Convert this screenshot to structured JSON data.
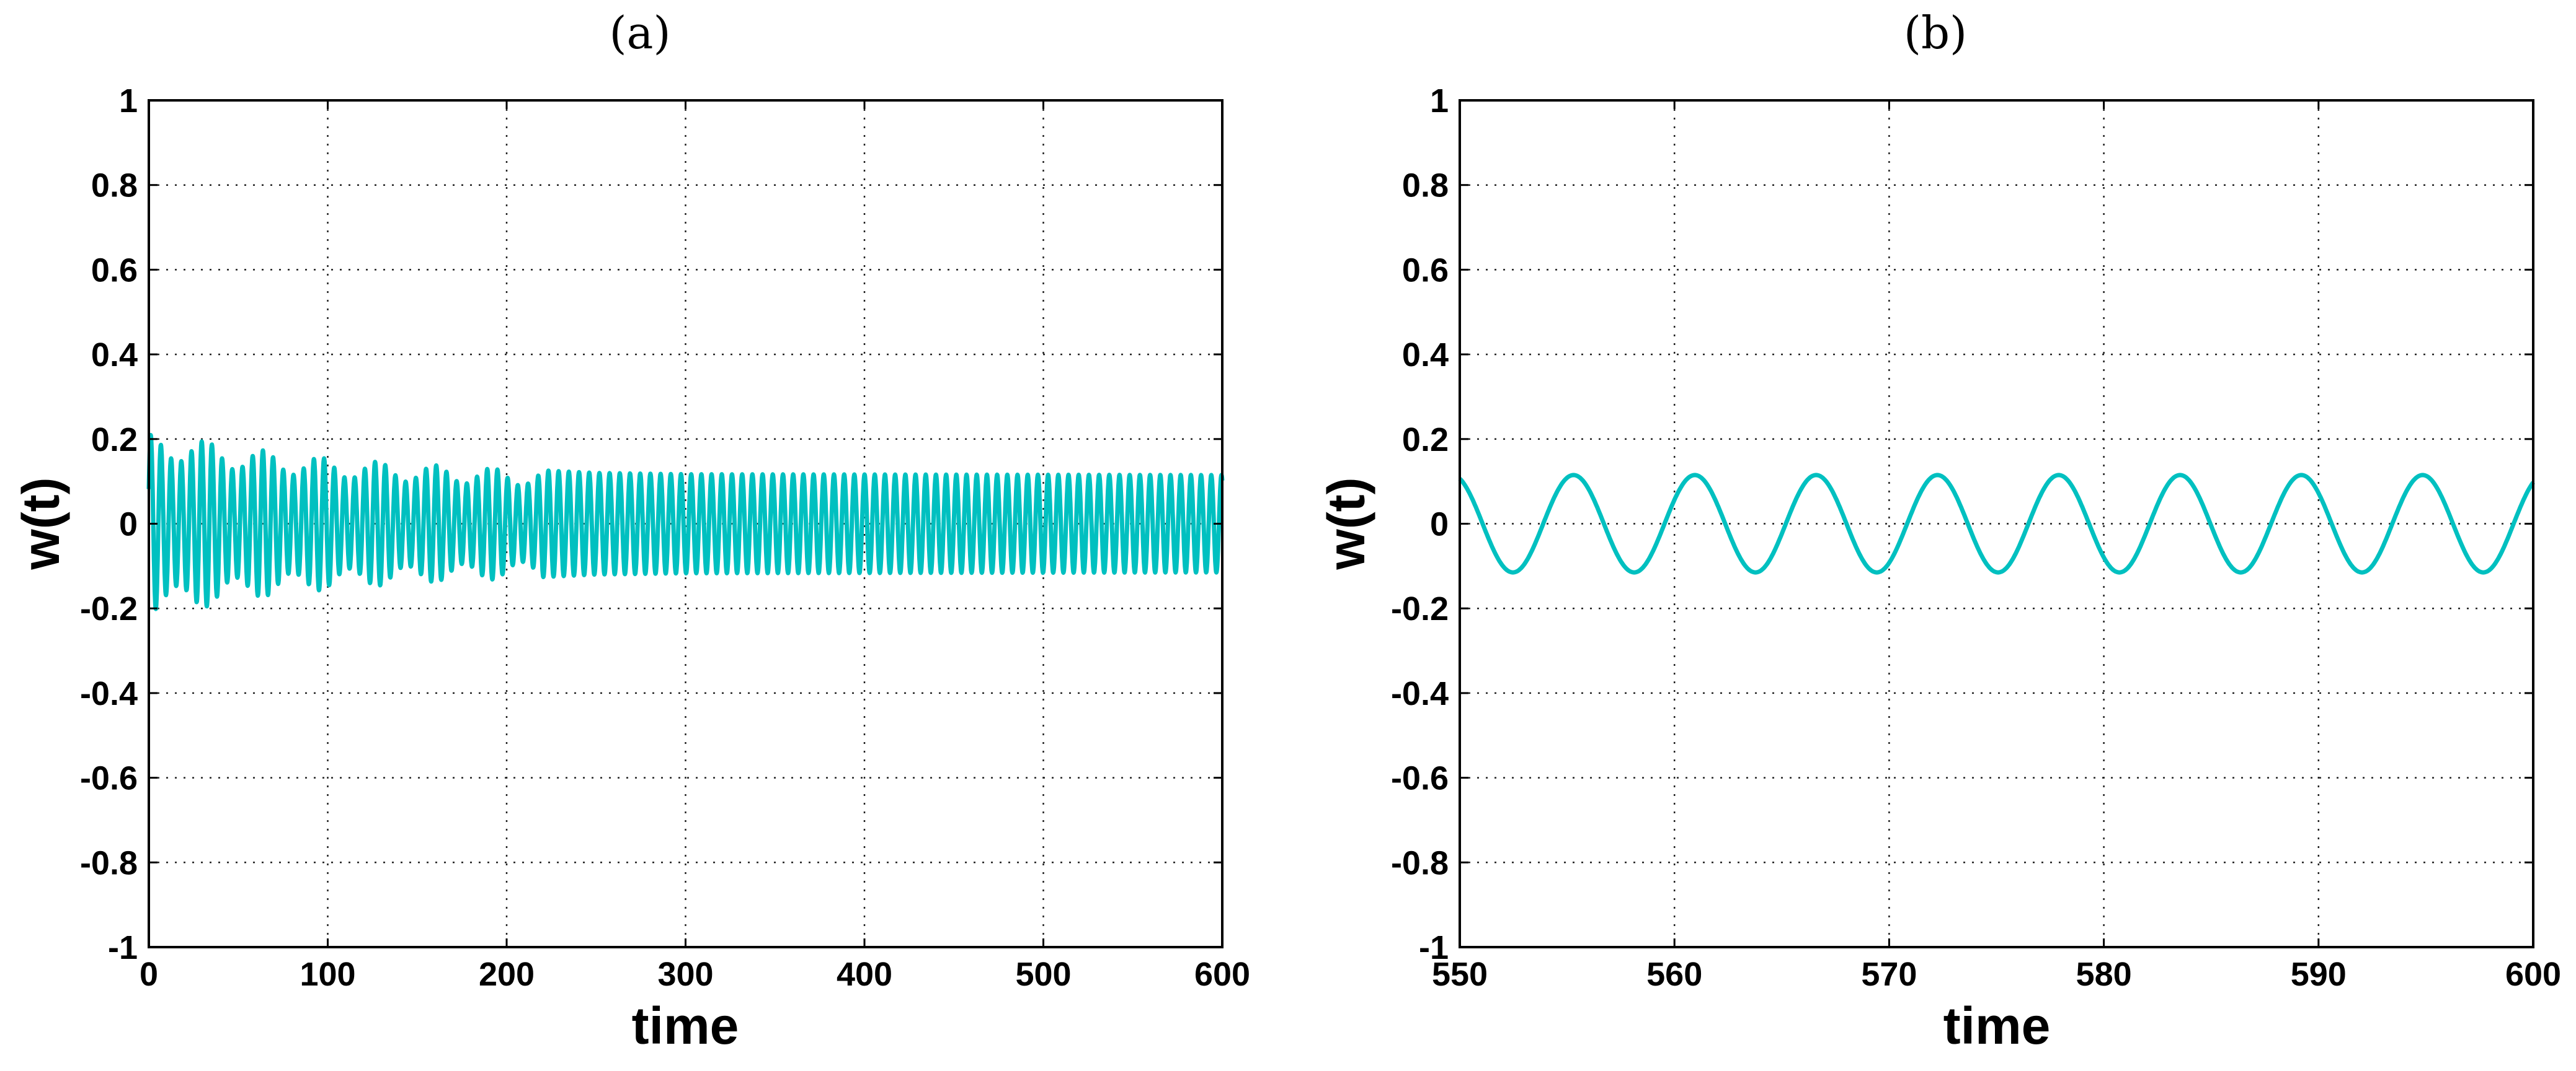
{
  "chart_data": [
    {
      "type": "line",
      "panel_label": "(a)",
      "title": "",
      "xlabel": "time",
      "ylabel": "w(t)",
      "xlim": [
        0,
        600
      ],
      "ylim": [
        -1,
        1
      ],
      "x_ticks": [
        "0",
        "100",
        "200",
        "300",
        "400",
        "500",
        "600"
      ],
      "y_ticks": [
        "1",
        "0.8",
        "0.6",
        "0.4",
        "0.2",
        "0",
        "-0.2",
        "-0.4",
        "-0.6",
        "-0.8",
        "-1"
      ],
      "grid": true,
      "color": "#00c0c0",
      "series": [
        {
          "description_of_signal": "",
          "x_start": 0,
          "x_end": 600,
          "period": 5.7,
          "amplitude_envelope": [
            [
              0,
              0.21
            ],
            [
              15,
              0.21
            ],
            [
              50,
              0.18
            ],
            [
              100,
              0.155
            ],
            [
              150,
              0.14
            ],
            [
              200,
              0.13
            ],
            [
              250,
              0.12
            ],
            [
              300,
              0.117
            ],
            [
              600,
              0.115
            ]
          ]
        }
      ]
    },
    {
      "type": "line",
      "panel_label": "(b)",
      "title": "",
      "xlabel": "time",
      "ylabel": "w(t)",
      "xlim": [
        550,
        600
      ],
      "ylim": [
        -1,
        1
      ],
      "x_ticks": [
        "550",
        "560",
        "570",
        "580",
        "590",
        "600"
      ],
      "y_ticks": [
        "1",
        "0.8",
        "0.6",
        "0.4",
        "0.2",
        "0",
        "-0.2",
        "-0.4",
        "-0.6",
        "-0.8",
        "-1"
      ],
      "grid": true,
      "color": "#00c0c0",
      "series": [
        {
          "x_start": 550,
          "x_end": 600,
          "period": 5.65,
          "amplitude": 0.115,
          "first_peak_x": 555.3
        }
      ]
    }
  ]
}
